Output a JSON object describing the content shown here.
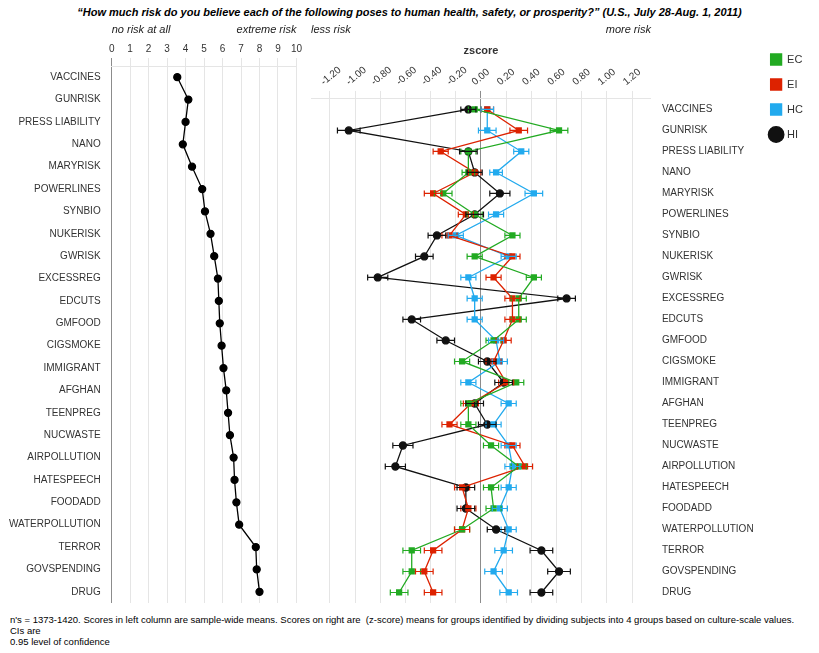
{
  "chart_data": [
    {
      "type": "line",
      "orientation": "horizontal",
      "title": "“How much risk do you believe each of the following poses to human health, safety, or prosperity?” (U.S., July 28-Aug. 1, 2011)",
      "categories": [
        "VACCINES",
        "GUNRISK",
        "PRESS LIABILITY",
        "NANO",
        "MARYRISK",
        "POWERLINES",
        "SYNBIO",
        "NUKERISK",
        "GWRISK",
        "EXCESSREG",
        "EDCUTS",
        "GMFOOD",
        "CIGSMOKE",
        "IMMIGRANT",
        "AFGHAN",
        "TEENPREG",
        "NUCWASTE",
        "AIRPOLLUTION",
        "HATESPEECH",
        "FOODADD",
        "WATERPOLLUTION",
        "TERROR",
        "GOVSPENDING",
        "DRUG"
      ],
      "values": [
        3.55,
        4.15,
        4.0,
        3.85,
        4.35,
        4.9,
        5.05,
        5.35,
        5.55,
        5.75,
        5.8,
        5.85,
        5.95,
        6.05,
        6.2,
        6.3,
        6.4,
        6.6,
        6.65,
        6.75,
        6.9,
        7.8,
        7.85,
        8.0
      ],
      "errors": [
        0.12,
        0.1,
        0.1,
        0.08,
        0.1,
        0.1,
        0.1,
        0.1,
        0.1,
        0.1,
        0.1,
        0.1,
        0.1,
        0.1,
        0.1,
        0.1,
        0.1,
        0.1,
        0.1,
        0.1,
        0.1,
        0.12,
        0.1,
        0.1
      ],
      "color": "black",
      "marker": "circle",
      "xlim": [
        0,
        10
      ],
      "xticks": [
        0,
        1,
        2,
        3,
        4,
        5,
        6,
        7,
        8,
        9,
        10
      ],
      "grid": true,
      "annotations": [
        "no risk at all",
        "extreme risk"
      ]
    },
    {
      "type": "line",
      "orientation": "horizontal",
      "xlabel": "zscore",
      "categories": [
        "VACCINES",
        "GUNRISK",
        "PRESS LIABILITY",
        "NANO",
        "MARYRISK",
        "POWERLINES",
        "SYNBIO",
        "NUKERISK",
        "GWRISK",
        "EXCESSREG",
        "EDCUTS",
        "GMFOOD",
        "CIGSMOKE",
        "IMMIGRANT",
        "AFGHAN",
        "TEENPREG",
        "NUCWASTE",
        "AIRPOLLUTION",
        "HATESPEECH",
        "FOODADD",
        "WATERPOLLUTION",
        "TERROR",
        "GOVSPENDING",
        "DRUG"
      ],
      "series": [
        {
          "name": "EC",
          "color": "#22aa22",
          "marker": "square",
          "values": [
            -0.05,
            0.62,
            -0.1,
            -0.1,
            -0.3,
            -0.05,
            0.25,
            -0.05,
            0.42,
            0.3,
            0.3,
            0.1,
            -0.15,
            0.28,
            -0.1,
            -0.1,
            0.08,
            0.3,
            0.08,
            0.1,
            -0.15,
            -0.55,
            -0.55,
            -0.65
          ],
          "errors": [
            0.05,
            0.07,
            0.06,
            0.05,
            0.07,
            0.06,
            0.06,
            0.06,
            0.06,
            0.06,
            0.06,
            0.06,
            0.06,
            0.06,
            0.06,
            0.06,
            0.06,
            0.06,
            0.06,
            0.06,
            0.06,
            0.07,
            0.07,
            0.07
          ]
        },
        {
          "name": "EI",
          "color": "#dd2200",
          "marker": "square",
          "values": [
            0.05,
            0.3,
            -0.32,
            -0.05,
            -0.38,
            -0.12,
            -0.25,
            0.25,
            0.1,
            0.25,
            0.25,
            0.18,
            0.1,
            0.2,
            -0.08,
            -0.25,
            0.25,
            0.35,
            -0.15,
            -0.1,
            -0.15,
            -0.38,
            -0.45,
            -0.38
          ],
          "errors": [
            0.05,
            0.07,
            0.06,
            0.05,
            0.07,
            0.06,
            0.06,
            0.06,
            0.06,
            0.06,
            0.06,
            0.06,
            0.06,
            0.06,
            0.06,
            0.06,
            0.06,
            0.06,
            0.06,
            0.06,
            0.06,
            0.07,
            0.07,
            0.07
          ]
        },
        {
          "name": "HC",
          "color": "#22aaee",
          "marker": "square",
          "values": [
            0.05,
            0.05,
            0.32,
            0.12,
            0.42,
            0.12,
            -0.2,
            0.22,
            -0.1,
            -0.05,
            -0.05,
            0.12,
            0.15,
            -0.1,
            0.22,
            0.1,
            0.22,
            0.25,
            0.22,
            0.15,
            0.22,
            0.18,
            0.1,
            0.22
          ],
          "errors": [
            0.05,
            0.07,
            0.06,
            0.05,
            0.07,
            0.06,
            0.06,
            0.06,
            0.06,
            0.06,
            0.06,
            0.06,
            0.06,
            0.06,
            0.06,
            0.06,
            0.06,
            0.06,
            0.06,
            0.06,
            0.06,
            0.07,
            0.07,
            0.07
          ]
        },
        {
          "name": "HI",
          "color": "#111111",
          "marker": "circle",
          "values": [
            -0.1,
            -1.05,
            -0.1,
            -0.05,
            0.15,
            -0.05,
            -0.35,
            -0.45,
            -0.82,
            0.68,
            -0.55,
            -0.28,
            0.05,
            0.18,
            -0.05,
            0.05,
            -0.62,
            -0.68,
            -0.12,
            -0.12,
            0.12,
            0.48,
            0.62,
            0.48
          ],
          "errors": [
            0.06,
            0.09,
            0.07,
            0.06,
            0.08,
            0.07,
            0.07,
            0.07,
            0.08,
            0.07,
            0.07,
            0.07,
            0.07,
            0.07,
            0.07,
            0.07,
            0.08,
            0.08,
            0.07,
            0.07,
            0.07,
            0.09,
            0.09,
            0.09
          ]
        }
      ],
      "xlim": [
        -1.35,
        1.35
      ],
      "xticks": [
        {
          "value": -1.2,
          "label": "-1.20"
        },
        {
          "value": -1.0,
          "label": "-1.00"
        },
        {
          "value": -0.8,
          "label": "-0.80"
        },
        {
          "value": -0.6,
          "label": "-0.60"
        },
        {
          "value": -0.4,
          "label": "-0.40"
        },
        {
          "value": -0.2,
          "label": "-0.20"
        },
        {
          "value": 0.0,
          "label": "0.00"
        },
        {
          "value": 0.2,
          "label": "0.20"
        },
        {
          "value": 0.4,
          "label": "0.40"
        },
        {
          "value": 0.6,
          "label": "0.60"
        },
        {
          "value": 0.8,
          "label": "0.80"
        },
        {
          "value": 1.0,
          "label": "1.00"
        },
        {
          "value": 1.2,
          "label": "1.20"
        }
      ],
      "grid": true,
      "legend": "right",
      "annotations": [
        "less risk",
        "more risk",
        "n's = 1373-1420. Scores in left column are sample-wide means. Scores on right are  (z-score) means for groups identified by dividing subjects into 4 groups based on culture-scale values.   CIs are\n0.95 level of confidence"
      ]
    }
  ]
}
